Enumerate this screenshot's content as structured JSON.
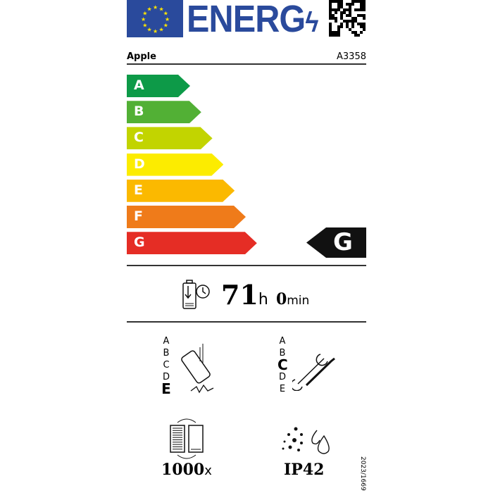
{
  "header": {
    "title": "ENERG",
    "brand": "Apple",
    "model": "A3358"
  },
  "energy_scale": {
    "classes": [
      {
        "label": "A",
        "color": "#0d9a48"
      },
      {
        "label": "B",
        "color": "#52b035"
      },
      {
        "label": "C",
        "color": "#c2d400"
      },
      {
        "label": "D",
        "color": "#fcec00"
      },
      {
        "label": "E",
        "color": "#fbb900"
      },
      {
        "label": "F",
        "color": "#ef7b1a"
      },
      {
        "label": "G",
        "color": "#e52d25"
      }
    ],
    "rating": "G"
  },
  "battery_endurance": {
    "hours": "71",
    "hours_unit": "h",
    "minutes": "0",
    "minutes_unit": "min"
  },
  "drop_resistance": {
    "scale": [
      "A",
      "B",
      "C",
      "D",
      "E"
    ],
    "rating": "E"
  },
  "repairability": {
    "scale": [
      "A",
      "B",
      "C",
      "D",
      "E"
    ],
    "rating": "C"
  },
  "battery_cycles": {
    "value": "1000",
    "unit": "x"
  },
  "ingress_protection": {
    "value": "IP42"
  },
  "regulation": "2023/1669"
}
